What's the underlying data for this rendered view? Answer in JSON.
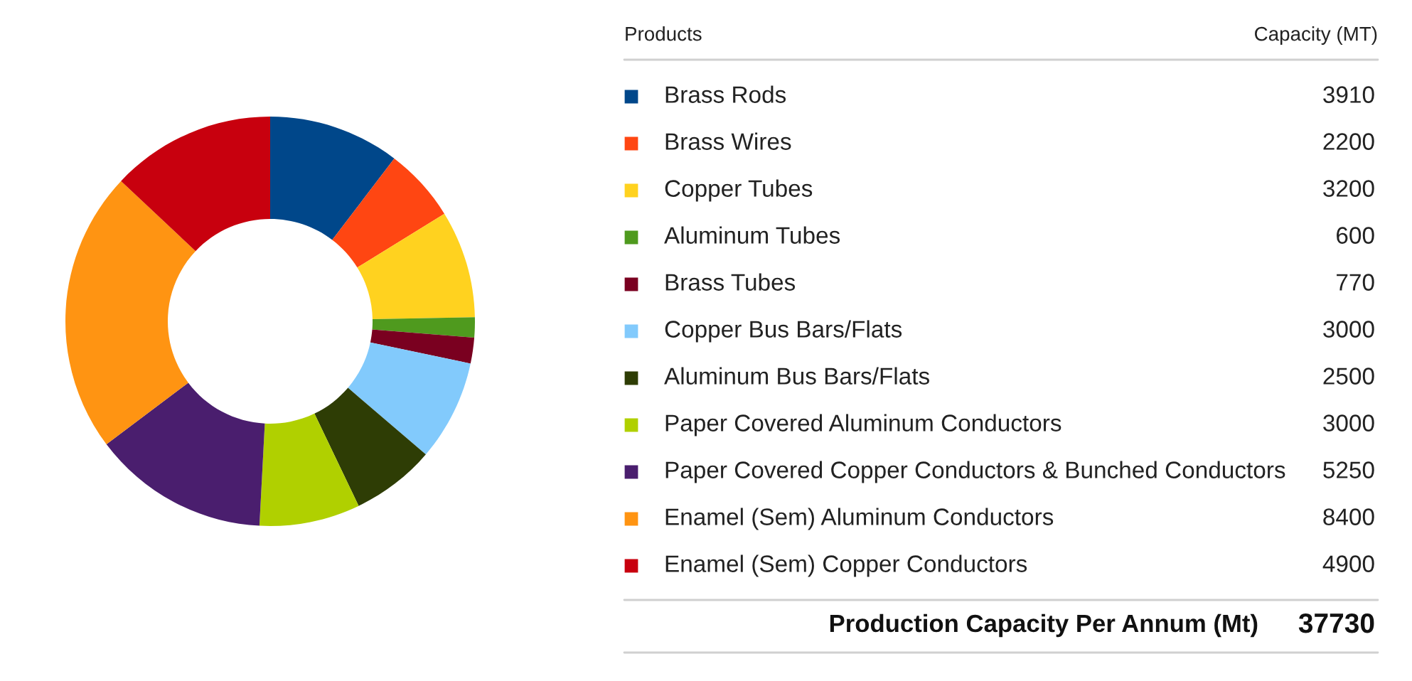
{
  "chart_data": {
    "type": "donut",
    "legend": "right",
    "data_labels": true,
    "categories": [
      "Brass Rods",
      "Brass Wires",
      "Copper Tubes",
      "Aluminum Tubes",
      "Brass Tubes",
      "Copper Bus Bars/Flats",
      "Aluminum Bus Bars/Flats",
      "Paper Covered Aluminum Conductors",
      "Paper Covered Copper Conductors & Bunched Conductors",
      "Enamel (Sem) Aluminum Conductors",
      "Enamel (Sem) Copper Conductors"
    ],
    "values": [
      3910,
      2200,
      3200,
      600,
      770,
      3000,
      2500,
      3000,
      5250,
      8400,
      4900
    ],
    "colors": [
      "#00478a",
      "#ff4612",
      "#ffd21f",
      "#4f9a1e",
      "#7a0020",
      "#82cafc",
      "#2e3d05",
      "#b0d000",
      "#4a1e6e",
      "#ff9412",
      "#c8000e"
    ],
    "annotations": [
      "Products",
      "Capacity (MT)",
      "Production Capacity Per Annum (Mt)",
      "37730"
    ]
  }
}
